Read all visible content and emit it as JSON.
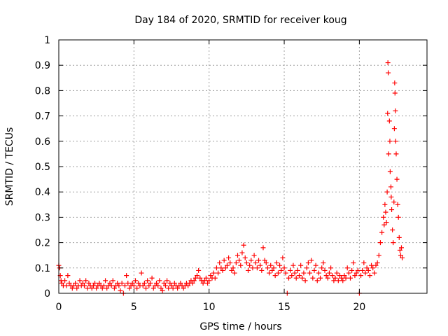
{
  "chart_data": {
    "type": "scatter",
    "title": "Day 184 of 2020, SRMTID for receiver koug",
    "xlabel": "GPS time / hours",
    "ylabel": "SRMTID / TECUs",
    "xlim": [
      0,
      24.5
    ],
    "ylim": [
      0,
      1
    ],
    "x_ticks": [
      0,
      5,
      10,
      15,
      20
    ],
    "x_tick_labels": [
      "0",
      "5",
      "10",
      "15",
      "20"
    ],
    "y_ticks": [
      0,
      0.1,
      0.2,
      0.3,
      0.4,
      0.5,
      0.6,
      0.7,
      0.8,
      0.9,
      1
    ],
    "y_tick_labels": [
      "0",
      "0.1",
      "0.2",
      "0.3",
      "0.4",
      "0.5",
      "0.6",
      "0.7",
      "0.8",
      "0.9",
      "1"
    ],
    "grid": true,
    "marker": "+",
    "series": [
      {
        "name": "SRMTID",
        "color": "#ff0000",
        "points": [
          [
            0.0,
            0.11
          ],
          [
            0.05,
            0.1
          ],
          [
            0.1,
            0.07
          ],
          [
            0.15,
            0.05
          ],
          [
            0.2,
            0.04
          ],
          [
            0.3,
            0.03
          ],
          [
            0.4,
            0.05
          ],
          [
            0.5,
            0.03
          ],
          [
            0.6,
            0.07
          ],
          [
            0.7,
            0.04
          ],
          [
            0.8,
            0.03
          ],
          [
            0.9,
            0.02
          ],
          [
            1.0,
            0.03
          ],
          [
            1.1,
            0.04
          ],
          [
            1.2,
            0.02
          ],
          [
            1.3,
            0.03
          ],
          [
            1.4,
            0.05
          ],
          [
            1.5,
            0.03
          ],
          [
            1.6,
            0.04
          ],
          [
            1.7,
            0.03
          ],
          [
            1.8,
            0.05
          ],
          [
            1.9,
            0.02
          ],
          [
            2.0,
            0.04
          ],
          [
            2.1,
            0.03
          ],
          [
            2.2,
            0.02
          ],
          [
            2.3,
            0.03
          ],
          [
            2.4,
            0.04
          ],
          [
            2.5,
            0.02
          ],
          [
            2.6,
            0.03
          ],
          [
            2.7,
            0.04
          ],
          [
            2.8,
            0.03
          ],
          [
            2.9,
            0.02
          ],
          [
            3.0,
            0.03
          ],
          [
            3.1,
            0.05
          ],
          [
            3.2,
            0.02
          ],
          [
            3.3,
            0.03
          ],
          [
            3.4,
            0.04
          ],
          [
            3.5,
            0.03
          ],
          [
            3.6,
            0.05
          ],
          [
            3.7,
            0.02
          ],
          [
            3.8,
            0.03
          ],
          [
            3.9,
            0.04
          ],
          [
            4.0,
            0.03
          ],
          [
            4.1,
            0.01
          ],
          [
            4.2,
            0.04
          ],
          [
            4.3,
            0.0
          ],
          [
            4.4,
            0.03
          ],
          [
            4.5,
            0.07
          ],
          [
            4.6,
            0.04
          ],
          [
            4.7,
            0.02
          ],
          [
            4.8,
            0.03
          ],
          [
            4.9,
            0.04
          ],
          [
            5.0,
            0.03
          ],
          [
            5.1,
            0.05
          ],
          [
            5.2,
            0.02
          ],
          [
            5.3,
            0.04
          ],
          [
            5.4,
            0.03
          ],
          [
            5.5,
            0.08
          ],
          [
            5.6,
            0.03
          ],
          [
            5.7,
            0.04
          ],
          [
            5.8,
            0.02
          ],
          [
            5.9,
            0.05
          ],
          [
            6.0,
            0.03
          ],
          [
            6.1,
            0.04
          ],
          [
            6.2,
            0.06
          ],
          [
            6.3,
            0.02
          ],
          [
            6.4,
            0.03
          ],
          [
            6.5,
            0.04
          ],
          [
            6.6,
            0.03
          ],
          [
            6.7,
            0.05
          ],
          [
            6.8,
            0.02
          ],
          [
            6.9,
            0.01
          ],
          [
            7.0,
            0.04
          ],
          [
            7.1,
            0.03
          ],
          [
            7.2,
            0.05
          ],
          [
            7.3,
            0.02
          ],
          [
            7.4,
            0.04
          ],
          [
            7.5,
            0.03
          ],
          [
            7.6,
            0.02
          ],
          [
            7.7,
            0.04
          ],
          [
            7.8,
            0.03
          ],
          [
            7.9,
            0.02
          ],
          [
            8.0,
            0.03
          ],
          [
            8.1,
            0.04
          ],
          [
            8.2,
            0.03
          ],
          [
            8.3,
            0.02
          ],
          [
            8.4,
            0.03
          ],
          [
            8.5,
            0.04
          ],
          [
            8.6,
            0.03
          ],
          [
            8.7,
            0.04
          ],
          [
            8.8,
            0.05
          ],
          [
            8.9,
            0.04
          ],
          [
            9.0,
            0.05
          ],
          [
            9.1,
            0.06
          ],
          [
            9.2,
            0.07
          ],
          [
            9.3,
            0.09
          ],
          [
            9.4,
            0.06
          ],
          [
            9.5,
            0.05
          ],
          [
            9.6,
            0.04
          ],
          [
            9.7,
            0.05
          ],
          [
            9.8,
            0.06
          ],
          [
            9.9,
            0.04
          ],
          [
            10.0,
            0.05
          ],
          [
            10.1,
            0.07
          ],
          [
            10.2,
            0.06
          ],
          [
            10.3,
            0.08
          ],
          [
            10.4,
            0.06
          ],
          [
            10.5,
            0.1
          ],
          [
            10.6,
            0.08
          ],
          [
            10.7,
            0.12
          ],
          [
            10.8,
            0.1
          ],
          [
            10.9,
            0.09
          ],
          [
            11.0,
            0.13
          ],
          [
            11.1,
            0.1
          ],
          [
            11.2,
            0.11
          ],
          [
            11.3,
            0.14
          ],
          [
            11.4,
            0.12
          ],
          [
            11.5,
            0.09
          ],
          [
            11.6,
            0.1
          ],
          [
            11.7,
            0.08
          ],
          [
            11.8,
            0.12
          ],
          [
            11.9,
            0.15
          ],
          [
            12.0,
            0.13
          ],
          [
            12.1,
            0.11
          ],
          [
            12.2,
            0.16
          ],
          [
            12.3,
            0.19
          ],
          [
            12.4,
            0.14
          ],
          [
            12.5,
            0.12
          ],
          [
            12.6,
            0.09
          ],
          [
            12.7,
            0.11
          ],
          [
            12.8,
            0.13
          ],
          [
            12.9,
            0.1
          ],
          [
            13.0,
            0.15
          ],
          [
            13.1,
            0.12
          ],
          [
            13.2,
            0.1
          ],
          [
            13.3,
            0.13
          ],
          [
            13.4,
            0.11
          ],
          [
            13.5,
            0.09
          ],
          [
            13.6,
            0.18
          ],
          [
            13.7,
            0.13
          ],
          [
            13.8,
            0.12
          ],
          [
            13.9,
            0.1
          ],
          [
            14.0,
            0.08
          ],
          [
            14.1,
            0.11
          ],
          [
            14.2,
            0.09
          ],
          [
            14.3,
            0.1
          ],
          [
            14.4,
            0.07
          ],
          [
            14.5,
            0.12
          ],
          [
            14.6,
            0.08
          ],
          [
            14.7,
            0.11
          ],
          [
            14.8,
            0.09
          ],
          [
            14.9,
            0.14
          ],
          [
            15.0,
            0.1
          ],
          [
            15.1,
            0.08
          ],
          [
            15.2,
            0.0
          ],
          [
            15.3,
            0.06
          ],
          [
            15.4,
            0.09
          ],
          [
            15.5,
            0.07
          ],
          [
            15.6,
            0.11
          ],
          [
            15.7,
            0.08
          ],
          [
            15.8,
            0.06
          ],
          [
            15.9,
            0.09
          ],
          [
            16.0,
            0.07
          ],
          [
            16.1,
            0.11
          ],
          [
            16.2,
            0.06
          ],
          [
            16.3,
            0.08
          ],
          [
            16.4,
            0.05
          ],
          [
            16.5,
            0.1
          ],
          [
            16.6,
            0.12
          ],
          [
            16.7,
            0.08
          ],
          [
            16.8,
            0.13
          ],
          [
            16.9,
            0.06
          ],
          [
            17.0,
            0.09
          ],
          [
            17.1,
            0.11
          ],
          [
            17.2,
            0.05
          ],
          [
            17.3,
            0.08
          ],
          [
            17.4,
            0.06
          ],
          [
            17.5,
            0.1
          ],
          [
            17.6,
            0.12
          ],
          [
            17.7,
            0.09
          ],
          [
            17.8,
            0.07
          ],
          [
            17.9,
            0.06
          ],
          [
            18.0,
            0.08
          ],
          [
            18.1,
            0.1
          ],
          [
            18.2,
            0.07
          ],
          [
            18.3,
            0.05
          ],
          [
            18.4,
            0.06
          ],
          [
            18.5,
            0.08
          ],
          [
            18.6,
            0.05
          ],
          [
            18.7,
            0.07
          ],
          [
            18.8,
            0.06
          ],
          [
            18.9,
            0.05
          ],
          [
            19.0,
            0.07
          ],
          [
            19.1,
            0.06
          ],
          [
            19.2,
            0.1
          ],
          [
            19.3,
            0.08
          ],
          [
            19.4,
            0.06
          ],
          [
            19.5,
            0.09
          ],
          [
            19.6,
            0.12
          ],
          [
            19.7,
            0.07
          ],
          [
            19.8,
            0.08
          ],
          [
            19.9,
            0.09
          ],
          [
            20.0,
            0.0
          ],
          [
            20.1,
            0.07
          ],
          [
            20.2,
            0.09
          ],
          [
            20.3,
            0.12
          ],
          [
            20.4,
            0.08
          ],
          [
            20.5,
            0.1
          ],
          [
            20.6,
            0.09
          ],
          [
            20.7,
            0.07
          ],
          [
            20.8,
            0.11
          ],
          [
            20.9,
            0.1
          ],
          [
            21.0,
            0.08
          ],
          [
            21.1,
            0.11
          ],
          [
            21.2,
            0.12
          ],
          [
            21.3,
            0.15
          ],
          [
            21.4,
            0.2
          ],
          [
            21.5,
            0.24
          ],
          [
            21.6,
            0.3
          ],
          [
            21.65,
            0.27
          ],
          [
            21.7,
            0.35
          ],
          [
            21.75,
            0.32
          ],
          [
            21.8,
            0.28
          ],
          [
            21.85,
            0.4
          ],
          [
            21.88,
            0.71
          ],
          [
            21.9,
            0.91
          ],
          [
            21.92,
            0.87
          ],
          [
            21.95,
            0.55
          ],
          [
            22.0,
            0.68
          ],
          [
            22.03,
            0.6
          ],
          [
            22.05,
            0.48
          ],
          [
            22.1,
            0.42
          ],
          [
            22.12,
            0.38
          ],
          [
            22.15,
            0.33
          ],
          [
            22.2,
            0.25
          ],
          [
            22.25,
            0.2
          ],
          [
            22.3,
            0.36
          ],
          [
            22.33,
            0.65
          ],
          [
            22.35,
            0.83
          ],
          [
            22.37,
            0.79
          ],
          [
            22.4,
            0.72
          ],
          [
            22.42,
            0.6
          ],
          [
            22.45,
            0.55
          ],
          [
            22.5,
            0.45
          ],
          [
            22.55,
            0.35
          ],
          [
            22.6,
            0.3
          ],
          [
            22.65,
            0.22
          ],
          [
            22.7,
            0.17
          ],
          [
            22.75,
            0.15
          ],
          [
            22.8,
            0.18
          ],
          [
            22.85,
            0.14
          ]
        ]
      }
    ]
  }
}
